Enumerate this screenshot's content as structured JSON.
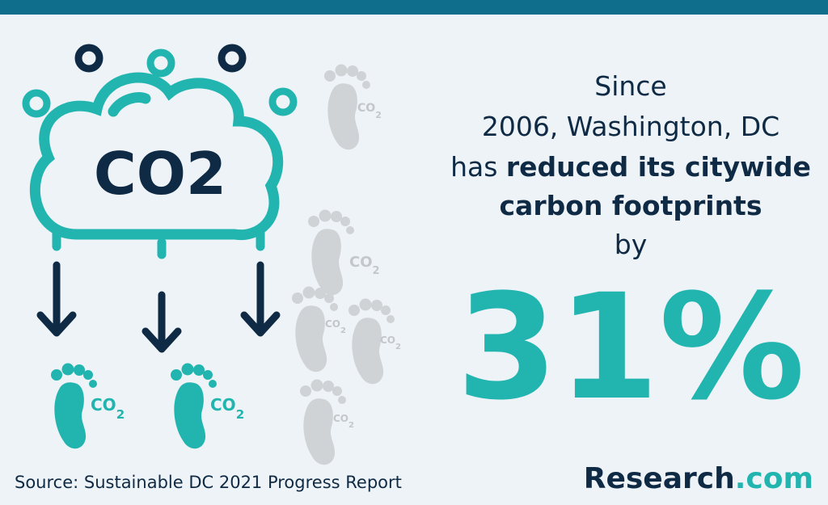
{
  "statement": {
    "line1": "Since",
    "line2": "2006, Washington, DC",
    "line3_regular": "has",
    "line3_bold": "reduced its citywide",
    "line4_bold": "carbon footprints",
    "line5": "by"
  },
  "figure": "31%",
  "icons": {
    "cloud_label": "CO2",
    "footprint_label": "CO",
    "footprint_subscript": "2"
  },
  "footer": {
    "source": "Source: Sustainable DC 2021 Progress Report",
    "logo_main": "Research",
    "logo_suffix": ".com"
  }
}
